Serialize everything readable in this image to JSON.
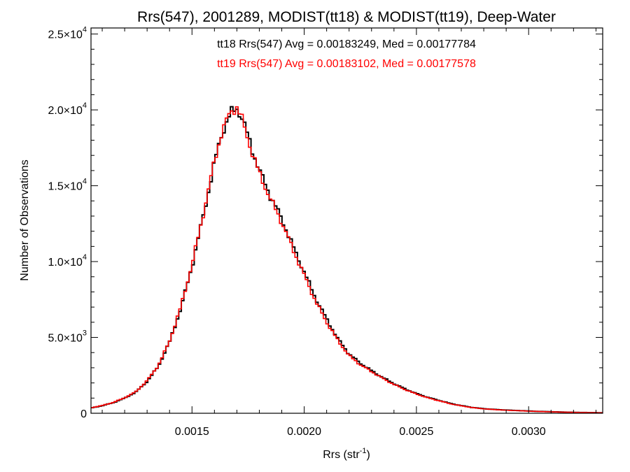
{
  "chart_data": {
    "type": "line",
    "title": "Rrs(547), 2001289, MODIST(tt18) & MODIST(tt19), Deep-Water",
    "xlabel": {
      "base": "Rrs (str",
      "sup": "-1",
      "end": ")"
    },
    "ylabel": "Number of Observations",
    "xlim": [
      0.00105,
      0.00333
    ],
    "ylim": [
      0,
      25400
    ],
    "x_ticks": [
      {
        "value": 0.0015,
        "label": "0.0015"
      },
      {
        "value": 0.002,
        "label": "0.0020"
      },
      {
        "value": 0.0025,
        "label": "0.0025"
      },
      {
        "value": 0.003,
        "label": "0.0030"
      }
    ],
    "y_ticks": [
      {
        "value": 0,
        "mant": "0",
        "exp": ""
      },
      {
        "value": 5000,
        "mant": "5.0×10",
        "exp": "3"
      },
      {
        "value": 10000,
        "mant": "1.0×10",
        "exp": "4"
      },
      {
        "value": 15000,
        "mant": "1.5×10",
        "exp": "4"
      },
      {
        "value": 20000,
        "mant": "2.0×10",
        "exp": "4"
      },
      {
        "value": 25000,
        "mant": "2.5×10",
        "exp": "4"
      }
    ],
    "grid": false,
    "annotations": [
      {
        "text": "tt18 Rrs(547) Avg = 0.00183249, Med = 0.00177784",
        "color": "#000000"
      },
      {
        "text": "tt19 Rrs(547) Avg = 0.00183102, Med = 0.00177578",
        "color": "#ff0000"
      }
    ],
    "series": [
      {
        "color": "#000000",
        "x": [
          0.00105,
          0.0011,
          0.00115,
          0.0012,
          0.00125,
          0.0013,
          0.00135,
          0.0014,
          0.00145,
          0.0015,
          0.00155,
          0.0016,
          0.00163,
          0.00166,
          0.00168,
          0.0017,
          0.00172,
          0.00174,
          0.00177,
          0.0018,
          0.00185,
          0.0019,
          0.00195,
          0.002,
          0.00205,
          0.0021,
          0.00215,
          0.0022,
          0.00225,
          0.0023,
          0.00235,
          0.0024,
          0.00245,
          0.0025,
          0.00255,
          0.0026,
          0.00265,
          0.0027,
          0.00275,
          0.0028,
          0.00285,
          0.0029,
          0.00295,
          0.003,
          0.00305,
          0.0031,
          0.00315,
          0.0032,
          0.00325,
          0.0033,
          0.00333
        ],
        "y": [
          350,
          500,
          700,
          1000,
          1400,
          2100,
          3100,
          4700,
          6900,
          9700,
          13000,
          16500,
          18300,
          19400,
          19900,
          20100,
          19600,
          18700,
          17300,
          16000,
          14300,
          12800,
          11000,
          9300,
          7600,
          6200,
          4900,
          3900,
          3300,
          2800,
          2350,
          1950,
          1600,
          1300,
          1050,
          850,
          650,
          500,
          380,
          300,
          250,
          210,
          180,
          150,
          120,
          100,
          80,
          60,
          50,
          40,
          30
        ]
      },
      {
        "color": "#ff0000",
        "x": [
          0.00105,
          0.0011,
          0.00115,
          0.0012,
          0.00125,
          0.0013,
          0.00135,
          0.0014,
          0.00145,
          0.0015,
          0.00155,
          0.0016,
          0.00163,
          0.00166,
          0.00168,
          0.0017,
          0.00172,
          0.00174,
          0.00177,
          0.0018,
          0.00185,
          0.0019,
          0.00195,
          0.002,
          0.00205,
          0.0021,
          0.00215,
          0.0022,
          0.00225,
          0.0023,
          0.00235,
          0.0024,
          0.00245,
          0.0025,
          0.00255,
          0.0026,
          0.00265,
          0.0027,
          0.00275,
          0.0028,
          0.00285,
          0.0029,
          0.00295,
          0.003,
          0.00305,
          0.0031,
          0.00315,
          0.0032,
          0.00325,
          0.0033,
          0.00333
        ],
        "y": [
          360,
          510,
          720,
          1020,
          1420,
          2150,
          3150,
          4750,
          7000,
          9800,
          13100,
          16600,
          18400,
          19500,
          20000,
          20200,
          19500,
          18500,
          17100,
          15800,
          14100,
          12600,
          10800,
          9100,
          7400,
          6000,
          4800,
          3800,
          3200,
          2750,
          2300,
          1900,
          1560,
          1270,
          1020,
          830,
          630,
          490,
          370,
          290,
          240,
          200,
          170,
          140,
          115,
          95,
          75,
          58,
          48,
          38,
          28
        ]
      }
    ]
  }
}
